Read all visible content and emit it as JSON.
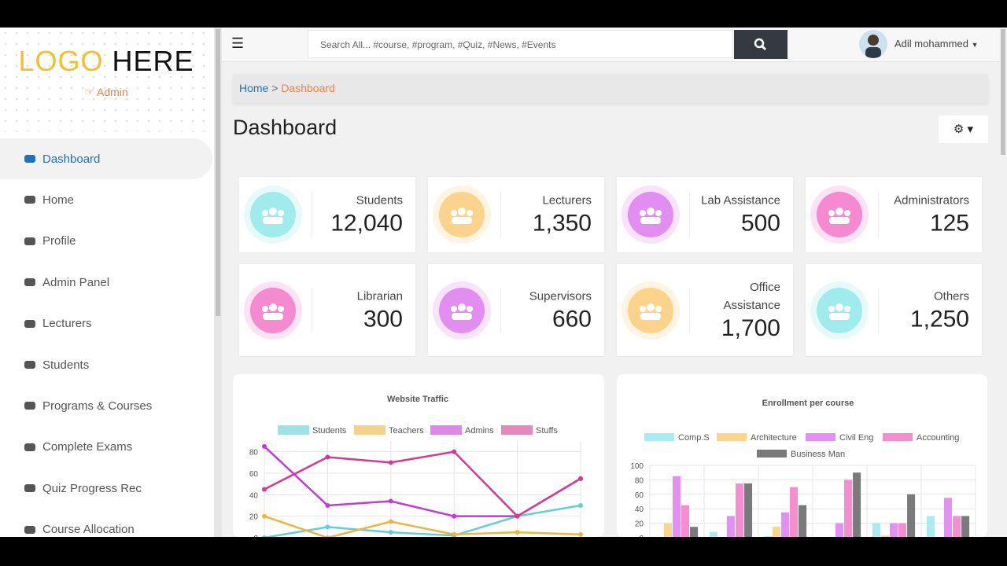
{
  "sidebar": {
    "logo_part1": "LOGO",
    "logo_part2": "HERE",
    "role": "Admin",
    "menu": [
      "Dashboard",
      "Home",
      "Profile",
      "Admin Panel",
      "Lecturers",
      "Students",
      "Programs & Courses",
      "Complete Exams",
      "Quiz Progress Rec",
      "Course Allocation"
    ]
  },
  "header": {
    "search_placeholder": "Search All... #course, #program, #Quiz, #News, #Events",
    "user_name": "Adil mohammed"
  },
  "breadcrumb": [
    "Home",
    "Dashboard"
  ],
  "page_title": "Dashboard",
  "stats": [
    {
      "label": "Students",
      "value": "12,040"
    },
    {
      "label": "Lecturers",
      "value": "1,350"
    },
    {
      "label": "Lab Assistance",
      "value": "500"
    },
    {
      "label": "Administrators",
      "value": "125"
    },
    {
      "label": "Librarian",
      "value": "300"
    },
    {
      "label": "Supervisors",
      "value": "660"
    },
    {
      "label": "Office Assistance",
      "value": "1,700"
    },
    {
      "label": "Others",
      "value": "1,250"
    }
  ],
  "charts": [
    {
      "type": "line",
      "title": "Website Traffic",
      "categories": [
        null,
        null,
        null,
        null,
        null,
        null
      ],
      "series": [
        {
          "name": "Students",
          "color": "#5fd0d9",
          "values": [
            0,
            10,
            5,
            2,
            20,
            30
          ]
        },
        {
          "name": "Teachers",
          "color": "#f0b43c",
          "values": [
            20,
            0,
            15,
            3,
            5,
            3
          ]
        },
        {
          "name": "Admins",
          "color": "#c43ad8",
          "values": [
            85,
            30,
            34,
            20,
            20,
            55
          ]
        },
        {
          "name": "Stuffs",
          "color": "#d8388f",
          "values": [
            45,
            75,
            70,
            80,
            20,
            55
          ]
        }
      ],
      "ylim": [
        0,
        90
      ],
      "yticks": [
        0,
        20,
        40,
        60,
        80
      ],
      "grid": true
    },
    {
      "type": "bar",
      "title": "Enrollment per course",
      "categories": [
        null,
        null,
        null,
        null,
        null,
        null
      ],
      "series": [
        {
          "name": "Comp.S",
          "color": "#a8ecef",
          "values": [
            0,
            8,
            2,
            0,
            20,
            30
          ]
        },
        {
          "name": "Architecture",
          "color": "#fbd58e",
          "values": [
            20,
            0,
            15,
            0,
            3,
            0
          ]
        },
        {
          "name": "Civil Eng",
          "color": "#e291f2",
          "values": [
            85,
            30,
            35,
            20,
            20,
            55
          ]
        },
        {
          "name": "Accounting",
          "color": "#f58ecf",
          "values": [
            45,
            75,
            70,
            80,
            20,
            30
          ]
        },
        {
          "name": "Business Man",
          "color": "#7a7a7a",
          "values": [
            15,
            75,
            45,
            90,
            60,
            30
          ]
        }
      ],
      "ylim": [
        0,
        100
      ],
      "yticks": [
        0,
        20,
        40,
        60,
        80,
        100
      ],
      "grid": true
    }
  ]
}
